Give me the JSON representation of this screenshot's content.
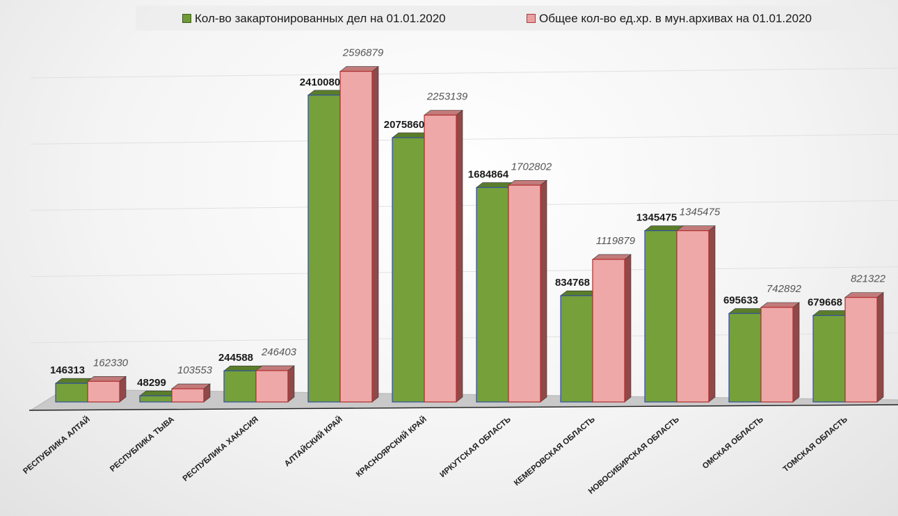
{
  "chart_data": {
    "type": "bar",
    "categories": [
      "РЕСПУБЛИКА АЛТАЙ",
      "РЕСПУБЛИКА ТЫВА",
      "РЕСПУБЛИКА ХАКАСИЯ",
      "АЛТАЙСКИЙ КРАЙ",
      "КРАСНОЯРСКИЙ КРАЙ",
      "ИРКУТСКАЯ ОБЛАСТЬ",
      "КЕМЕРОВСКАЯ ОБЛАСТЬ",
      "НОВОСИБИРСКАЯ ОБЛАСТЬ",
      "ОМСКАЯ ОБЛАСТЬ",
      "ТОМСКАЯ ОБЛАСТЬ"
    ],
    "series": [
      {
        "name": "Кол-во закартонированных дел на 01.01.2020",
        "values": [
          146313,
          48299,
          244588,
          2410080,
          2075860,
          1684864,
          834768,
          1345475,
          695633,
          679668
        ],
        "color": "#6f9a35"
      },
      {
        "name": "Общее кол-во ед.хр. в мун.архивах на 01.01.2020",
        "values": [
          162330,
          103553,
          246403,
          2596879,
          2253139,
          1702802,
          1119879,
          1345475,
          742892,
          821322
        ],
        "color": "#e9a0a0"
      }
    ],
    "title": "",
    "xlabel": "",
    "ylabel": "",
    "ylim": [
      0,
      2600000
    ],
    "grid": true,
    "legend_position": "top",
    "style": "3d-column"
  }
}
